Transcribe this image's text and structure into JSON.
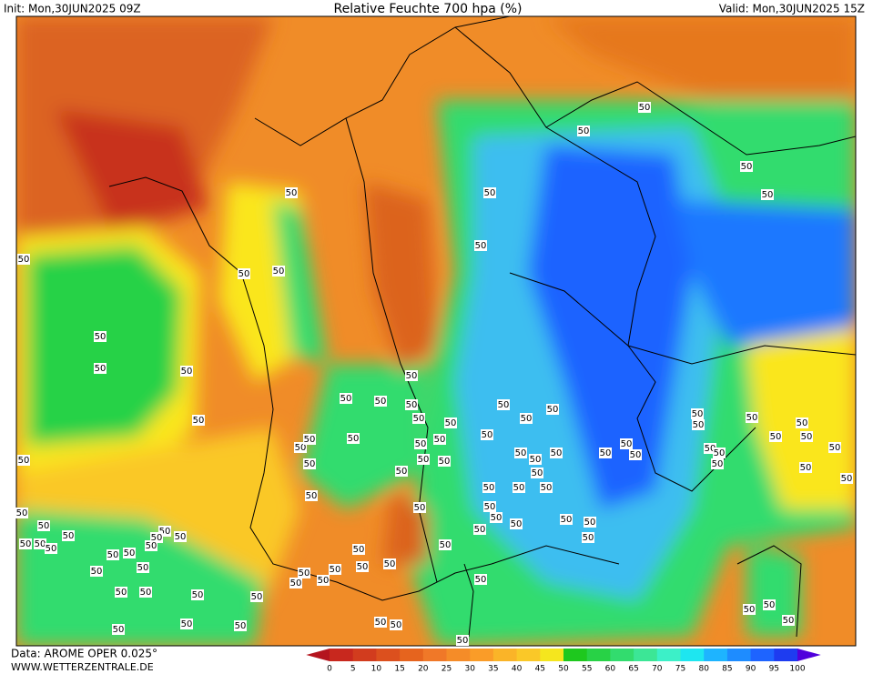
{
  "header": {
    "init": "Init: Mon,30JUN2025 09Z",
    "title": "Relative Feuchte 700 hpa (%)",
    "valid": "Valid: Mon,30JUN2025 15Z"
  },
  "footer": {
    "source": "Data: AROME OPER 0.025°",
    "website": "WWW.WETTERZENTRALE.DE"
  },
  "colorbar": {
    "levels": [
      0,
      5,
      10,
      15,
      20,
      25,
      30,
      35,
      40,
      45,
      50,
      55,
      60,
      65,
      70,
      75,
      80,
      85,
      90,
      95,
      100
    ],
    "colors": [
      "#b4141e",
      "#c8281e",
      "#d23c1e",
      "#dc501e",
      "#e6641e",
      "#f07828",
      "#f58c28",
      "#fa9c28",
      "#fab428",
      "#fac828",
      "#f5e61e",
      "#1ec81e",
      "#28d246",
      "#32dc6e",
      "#3ce696",
      "#3cf0c8",
      "#1ee6f0",
      "#1eb4ff",
      "#1e8cff",
      "#1e64ff",
      "#1e3cf0",
      "#5000dc"
    ]
  },
  "contour_labels": [
    "50",
    "50",
    "50",
    "50",
    "50",
    "50",
    "50",
    "50",
    "50",
    "50",
    "50",
    "50",
    "50",
    "50",
    "50",
    "50",
    "50",
    "50",
    "50",
    "50",
    "50",
    "50",
    "50",
    "50",
    "50",
    "50",
    "50",
    "50",
    "50",
    "50",
    "50",
    "50",
    "50",
    "50",
    "50",
    "50",
    "50",
    "50",
    "50",
    "50",
    "50",
    "50",
    "50",
    "50",
    "50",
    "50",
    "50",
    "50",
    "50",
    "50",
    "50",
    "50",
    "50",
    "50",
    "50",
    "50",
    "50",
    "50",
    "50",
    "50",
    "50",
    "50",
    "50",
    "50",
    "50",
    "50",
    "50",
    "50",
    "50",
    "50",
    "50",
    "50",
    "50",
    "50",
    "50",
    "50",
    "50",
    "50",
    "50",
    "50",
    "50",
    "50",
    "50",
    "50",
    "50",
    "50",
    "50",
    "50",
    "50",
    "50",
    "50",
    "50",
    "50",
    "50",
    "50",
    "50",
    "50",
    "50",
    "50",
    "50",
    "50"
  ]
}
